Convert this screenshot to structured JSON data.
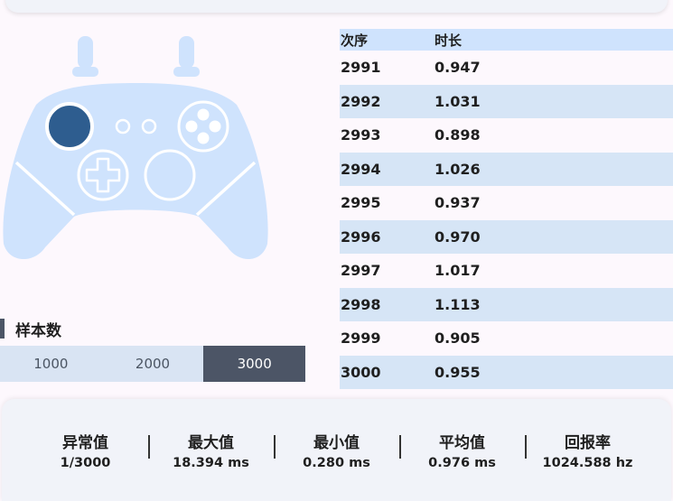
{
  "sample": {
    "title": "样本数",
    "options": [
      "1000",
      "2000",
      "3000"
    ],
    "selected": "3000"
  },
  "table": {
    "headers": [
      "次序",
      "时长"
    ],
    "rows": [
      [
        "2991",
        "0.947"
      ],
      [
        "2992",
        "1.031"
      ],
      [
        "2993",
        "0.898"
      ],
      [
        "2994",
        "1.026"
      ],
      [
        "2995",
        "0.937"
      ],
      [
        "2996",
        "0.970"
      ],
      [
        "2997",
        "1.017"
      ],
      [
        "2998",
        "1.113"
      ],
      [
        "2999",
        "0.905"
      ],
      [
        "3000",
        "0.955"
      ]
    ]
  },
  "stats": [
    {
      "label": "异常值",
      "value": "1/3000"
    },
    {
      "label": "最大值",
      "value": "18.394 ms"
    },
    {
      "label": "最小值",
      "value": "0.280 ms"
    },
    {
      "label": "平均值",
      "value": "0.976 ms"
    },
    {
      "label": "回报率",
      "value": "1024.588 hz"
    }
  ],
  "colors": {
    "controller_body": "#cfe3fd",
    "active_stick": "#2e5d8f",
    "segment_active": "#4c5566",
    "row_alt": "#d6e5f6"
  }
}
